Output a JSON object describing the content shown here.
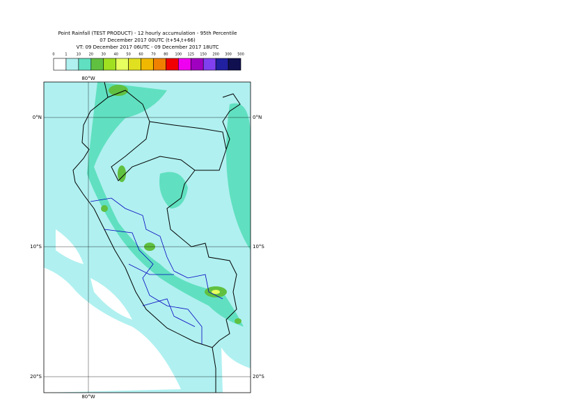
{
  "header": {
    "title": "Point Rainfall (TEST PRODUCT) - 12 hourly accumulation - 95th Percentile",
    "run": "07 December 2017 00UTC (t+54,t+66)",
    "validity": "VT: 09 December 2017 06UTC - 09 December 2017 18UTC"
  },
  "legend": {
    "labels": [
      0,
      1,
      10,
      20,
      30,
      40,
      50,
      60,
      70,
      80,
      100,
      125,
      150,
      200,
      300,
      500
    ],
    "colors": [
      "#ffffff",
      "#b0f0f0",
      "#60e0c0",
      "#60c040",
      "#a0e020",
      "#e8ff60",
      "#e0e020",
      "#f0b800",
      "#f08000",
      "#f00000",
      "#f000f0",
      "#a000c0",
      "#8040f0",
      "#2020a0",
      "#101050"
    ]
  },
  "map": {
    "lat_labels": [
      "0°N",
      "10°S",
      "20°S"
    ],
    "lon_label": "80°W"
  }
}
